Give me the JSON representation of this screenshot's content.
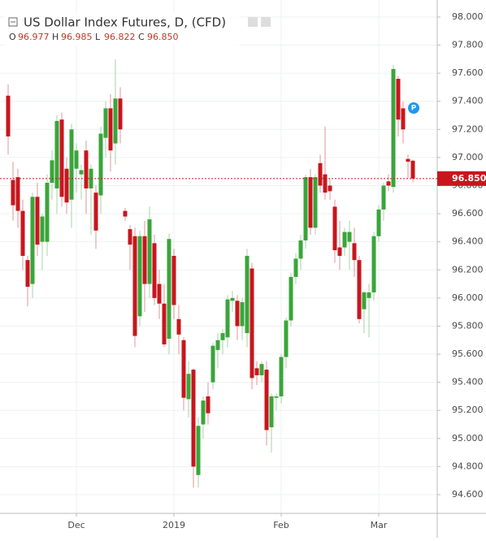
{
  "chart_data": {
    "type": "candlestick",
    "title": "US Dollar Index Futures, D, (CFD)",
    "categories": [
      null,
      null,
      null,
      null,
      null,
      null,
      null,
      null,
      null,
      null,
      null,
      null,
      null,
      null,
      "Dec",
      null,
      null,
      null,
      null,
      null,
      null,
      null,
      null,
      null,
      null,
      null,
      null,
      null,
      null,
      null,
      null,
      null,
      null,
      null,
      "2019",
      null,
      null,
      null,
      null,
      null,
      null,
      null,
      null,
      null,
      null,
      null,
      null,
      null,
      null,
      null,
      null,
      null,
      null,
      null,
      null,
      null,
      "Feb",
      null,
      null,
      null,
      null,
      null,
      null,
      null,
      null,
      null,
      null,
      null,
      null,
      null,
      null,
      null,
      null,
      null,
      null,
      null,
      "Mar",
      null,
      null,
      null,
      null,
      null,
      null,
      null
    ],
    "open": [
      97.44,
      96.84,
      96.86,
      96.62,
      96.27,
      96.1,
      96.72,
      96.4,
      96.4,
      96.82,
      96.78,
      97.27,
      96.92,
      96.7,
      96.92,
      96.88,
      97.05,
      96.78,
      96.75,
      96.73,
      97.14,
      97.35,
      97.1,
      97.42,
      96.62,
      96.49,
      96.44,
      95.87,
      96.44,
      96.1,
      96.39,
      96.1,
      95.96,
      95.71,
      96.3,
      95.85,
      95.7,
      95.28,
      95.49,
      94.74,
      95.1,
      95.3,
      95.4,
      95.63,
      95.7,
      95.72,
      95.98,
      95.98,
      95.8,
      95.75,
      96.21,
      95.5,
      95.45,
      95.49,
      95.08,
      95.29,
      95.3,
      95.58,
      95.84,
      96.15,
      96.28,
      96.41,
      96.86,
      96.5,
      96.96,
      96.88,
      96.8,
      96.65,
      96.36,
      96.36,
      96.4,
      96.39,
      96.27,
      95.92,
      96.0,
      96.04,
      96.44,
      96.63,
      96.83,
      96.79,
      97.56,
      97.35,
      96.99,
      96.977
    ],
    "high": [
      97.52,
      96.97,
      96.92,
      96.7,
      96.3,
      96.75,
      96.82,
      96.6,
      96.88,
      97.05,
      97.3,
      97.32,
      97.0,
      97.24,
      97.1,
      96.95,
      97.12,
      96.95,
      96.8,
      97.22,
      97.4,
      97.45,
      97.7,
      97.5,
      96.64,
      96.52,
      96.5,
      96.48,
      96.55,
      96.65,
      96.45,
      96.2,
      96.1,
      96.46,
      96.35,
      95.95,
      95.72,
      95.55,
      95.5,
      95.15,
      95.3,
      95.4,
      95.68,
      95.75,
      95.78,
      96.02,
      96.05,
      96.02,
      96.0,
      96.35,
      96.25,
      95.55,
      95.55,
      95.55,
      95.32,
      95.32,
      95.6,
      95.86,
      96.18,
      96.32,
      96.45,
      96.88,
      96.92,
      96.88,
      97.02,
      97.22,
      96.85,
      96.7,
      96.55,
      96.5,
      96.55,
      96.5,
      96.3,
      96.05,
      96.1,
      96.47,
      96.66,
      96.82,
      96.88,
      97.66,
      97.58,
      97.4,
      97.02,
      96.985
    ],
    "low": [
      97.02,
      96.55,
      96.5,
      96.2,
      95.94,
      96.0,
      96.3,
      96.2,
      96.3,
      96.7,
      96.6,
      96.65,
      96.6,
      96.5,
      96.75,
      96.7,
      96.6,
      96.45,
      96.35,
      96.6,
      97.0,
      96.9,
      96.95,
      97.1,
      96.55,
      96.2,
      95.65,
      95.8,
      95.9,
      96.0,
      95.95,
      95.85,
      95.65,
      95.6,
      95.85,
      95.6,
      95.2,
      95.15,
      94.65,
      94.65,
      95.0,
      95.1,
      95.35,
      95.5,
      95.6,
      95.65,
      95.9,
      95.7,
      95.7,
      95.65,
      95.35,
      95.38,
      95.4,
      94.95,
      94.9,
      95.2,
      95.25,
      95.5,
      95.8,
      96.1,
      96.2,
      96.35,
      96.45,
      96.45,
      96.75,
      96.7,
      96.7,
      96.25,
      96.2,
      96.3,
      96.2,
      96.15,
      95.82,
      95.75,
      95.72,
      95.98,
      96.4,
      96.55,
      96.76,
      96.75,
      97.15,
      97.1,
      96.85,
      96.822
    ],
    "close": [
      97.15,
      96.66,
      96.62,
      96.3,
      96.08,
      96.72,
      96.38,
      96.58,
      96.82,
      96.98,
      97.26,
      96.72,
      96.68,
      97.2,
      97.05,
      96.91,
      96.78,
      96.92,
      96.48,
      97.17,
      97.35,
      97.05,
      97.42,
      97.2,
      96.58,
      96.38,
      95.73,
      96.44,
      96.1,
      96.56,
      96.0,
      95.96,
      95.67,
      96.42,
      95.95,
      95.74,
      95.29,
      95.46,
      94.8,
      95.09,
      95.27,
      95.18,
      95.66,
      95.7,
      95.75,
      95.99,
      96.0,
      95.8,
      95.97,
      96.3,
      95.43,
      95.45,
      95.53,
      95.06,
      95.3,
      95.3,
      95.58,
      95.84,
      96.15,
      96.28,
      96.41,
      96.86,
      96.5,
      96.86,
      96.8,
      96.75,
      96.76,
      96.34,
      96.3,
      96.47,
      96.47,
      96.27,
      95.85,
      96.04,
      96.04,
      96.44,
      96.63,
      96.8,
      96.8,
      97.63,
      97.27,
      97.2,
      96.97,
      96.85
    ],
    "up_color": "#3aa53a",
    "down_color": "#c8161d",
    "ohlc_letters": [
      "O",
      "H",
      "L",
      "C"
    ],
    "last_value_labels": [
      "96.977",
      "96.985",
      "96.822",
      "96.850"
    ],
    "ylim": [
      94.467,
      98.121
    ],
    "yticks": [
      {
        "value": 98,
        "label": "98.000"
      },
      {
        "value": 97.8,
        "label": "97.800"
      },
      {
        "value": 97.6,
        "label": "97.600"
      },
      {
        "value": 97.4,
        "label": "97.400"
      },
      {
        "value": 97.2,
        "label": "97.200"
      },
      {
        "value": 97,
        "label": "97.000"
      },
      {
        "value": 96.8,
        "label": "96.800"
      },
      {
        "value": 96.6,
        "label": "96.600"
      },
      {
        "value": 96.4,
        "label": "96.400"
      },
      {
        "value": 96.2,
        "label": "96.200"
      },
      {
        "value": 96,
        "label": "96.000"
      },
      {
        "value": 95.8,
        "label": "95.800"
      },
      {
        "value": 95.6,
        "label": "95.600"
      },
      {
        "value": 95.4,
        "label": "95.400"
      },
      {
        "value": 95.2,
        "label": "95.200"
      },
      {
        "value": 95,
        "label": "95.000"
      },
      {
        "value": 94.8,
        "label": "94.800"
      },
      {
        "value": 94.6,
        "label": "94.600"
      }
    ],
    "grid": true
  }
}
